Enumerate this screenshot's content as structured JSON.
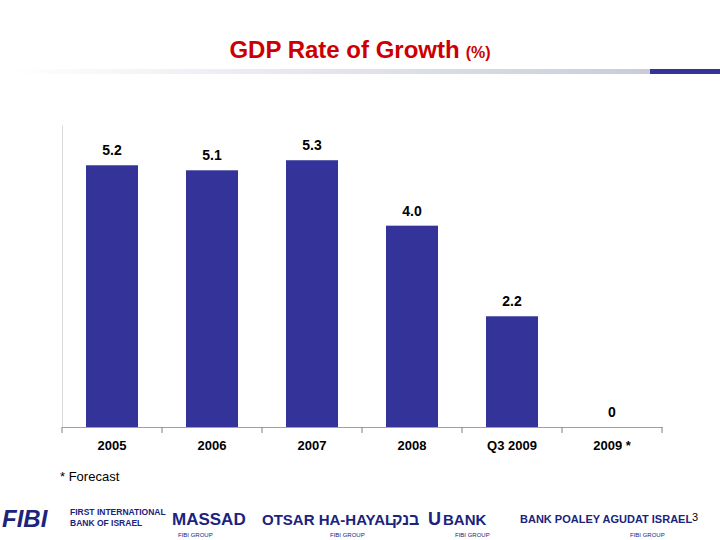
{
  "chart_data": {
    "type": "bar",
    "title": "GDP Rate of Growth",
    "subtitle": "(%)",
    "categories": [
      "2005",
      "2006",
      "2007",
      "2008",
      "Q3 2009",
      "2009 *"
    ],
    "values": [
      5.2,
      5.1,
      5.3,
      4.0,
      2.2,
      0
    ],
    "value_labels": [
      "5.2",
      "5.1",
      "5.3",
      "4.0",
      "2.2",
      "0"
    ],
    "color": "#333399",
    "ylim": [
      0,
      6
    ],
    "data_labels": true,
    "tick_labels": "x",
    "grid": false,
    "annotations": [
      "* Forecast",
      "3",
      "FIBI",
      "FIRST INTERNATIONAL",
      "BANK OF ISRAEL",
      "MASSAD",
      "OTSAR HA-HAYAL",
      "בנק",
      "U",
      "BANK",
      "BANK POALEY AGUDAT ISRAEL",
      "FIBI GROUP",
      "FIBI GROUP",
      "FIBI GROUP",
      "FIBI GROUP"
    ]
  }
}
